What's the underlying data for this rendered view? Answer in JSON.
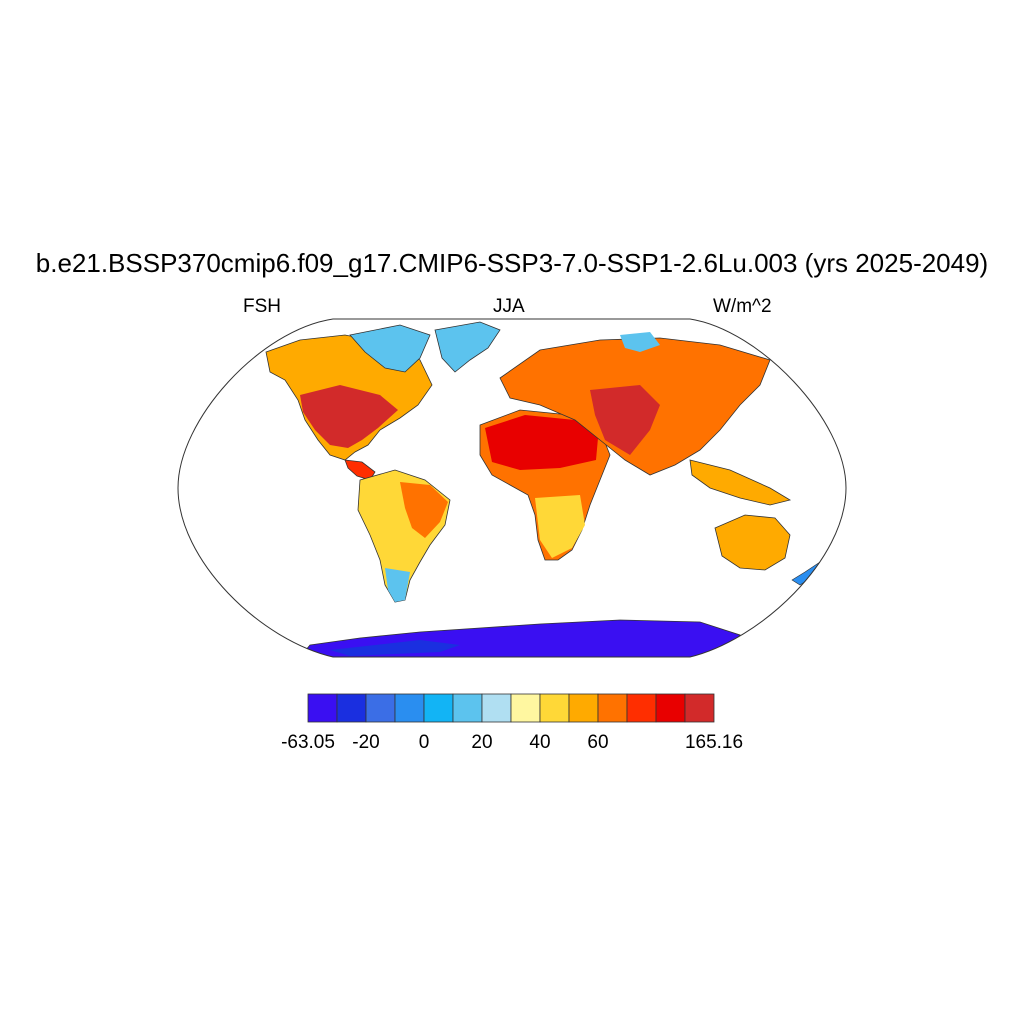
{
  "title": "b.e21.BSSP370cmip6.f09_g17.CMIP6-SSP3-7.0-SSP1-2.6Lu.003 (yrs 2025-2049)",
  "variable": "FSH",
  "season": "JJA",
  "units": "W/m^2",
  "colorbar": {
    "colors": [
      "#3a0ff2",
      "#1a2fe0",
      "#3b6ee6",
      "#2a8ef0",
      "#12b4f5",
      "#5cc3ee",
      "#b0dff2",
      "#fff7a0",
      "#ffd837",
      "#ffaa00",
      "#ff7200",
      "#ff2e00",
      "#e80000",
      "#d22a2a"
    ],
    "tick_labels": [
      "-63.05",
      "-20",
      "0",
      "20",
      "40",
      "60",
      "165.16"
    ]
  },
  "chart_data": {
    "type": "heatmap",
    "projection": "Robinson",
    "field": "FSH",
    "period": "JJA, yrs 2025-2049",
    "units": "W/m^2",
    "min": -63.05,
    "max": 165.16,
    "colorbar_ticks": [
      -63.05,
      -20,
      0,
      20,
      40,
      60,
      165.16
    ],
    "regions": [
      {
        "name": "North America",
        "range": [
          40,
          165.16
        ]
      },
      {
        "name": "Canadian Arctic",
        "range": [
          0,
          20
        ]
      },
      {
        "name": "Greenland",
        "range": [
          0,
          20
        ]
      },
      {
        "name": "South America",
        "range": [
          20,
          100
        ]
      },
      {
        "name": "Patagonia",
        "range": [
          0,
          20
        ]
      },
      {
        "name": "Africa",
        "range": [
          40,
          165.16
        ]
      },
      {
        "name": "Europe and Asia",
        "range": [
          40,
          165.16
        ]
      },
      {
        "name": "Siberian Arctic",
        "range": [
          0,
          20
        ]
      },
      {
        "name": "Australia",
        "range": [
          20,
          80
        ]
      },
      {
        "name": "Antarctica",
        "range": [
          -63.05,
          -20
        ]
      }
    ]
  }
}
